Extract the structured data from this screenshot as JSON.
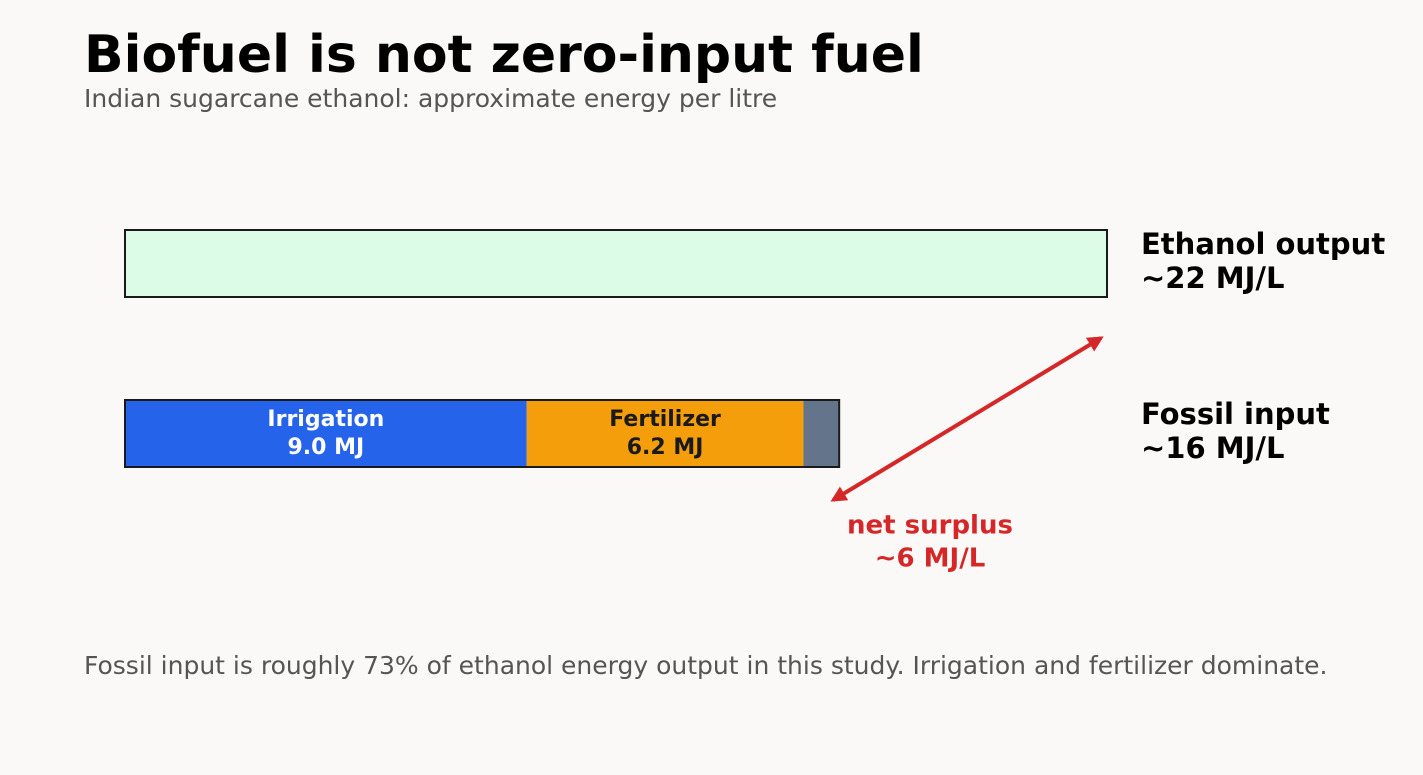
{
  "chart_data": {
    "type": "stacked-bar",
    "title": "Biofuel is not zero-input fuel",
    "subtitle": "Indian sugarcane ethanol: approximate energy per litre",
    "note": "Fossil input is roughly 73% of ethanol energy output in this study. Irrigation and fertilizer dominate.",
    "bars": [
      {
        "name": "Ethanol output",
        "total_label": "~22 MJ/L",
        "segments": [
          {
            "value": 22,
            "color": "#dcfce7"
          }
        ]
      },
      {
        "name": "Fossil input",
        "total_label": "~16 MJ/L",
        "segments": [
          {
            "name": "Irrigation",
            "value": 9.0,
            "value_label": "9.0 MJ",
            "color": "#2563eb",
            "text_color": "#ffffff"
          },
          {
            "name": "Fertilizer",
            "value": 6.2,
            "value_label": "6.2 MJ",
            "color": "#f59e0b",
            "text_color": "#1a1a1a"
          },
          {
            "value": 0.8,
            "color": "#64748b"
          }
        ]
      }
    ],
    "annotation": {
      "text": "net surplus",
      "value": 6,
      "value_label": "~6 MJ/L",
      "color": "#d62728"
    }
  }
}
